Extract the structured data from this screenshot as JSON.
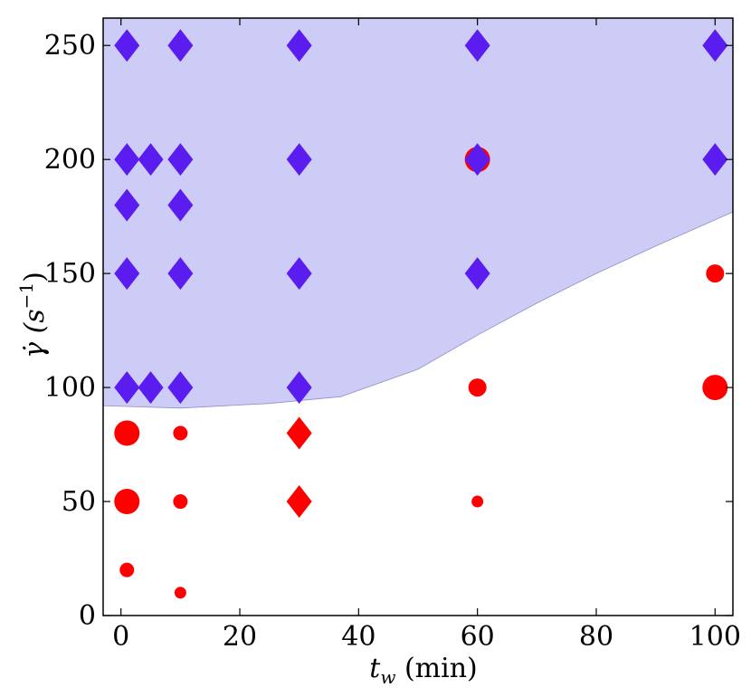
{
  "chart_data": {
    "type": "scatter",
    "title": "",
    "xlabel": "t_w (min)",
    "xlabel_main": "t",
    "xlabel_sub": "w",
    "xlabel_units": " (min)",
    "ylabel": "γ̇ (s⁻¹)",
    "ylabel_main": "γ̇ (s",
    "ylabel_sup": "−1",
    "ylabel_close": ")",
    "xlim": [
      -3,
      103
    ],
    "ylim": [
      0,
      262
    ],
    "xticks": [
      0,
      20,
      40,
      60,
      80,
      100
    ],
    "yticks": [
      0,
      50,
      100,
      150,
      200,
      250
    ],
    "grid": false,
    "region": {
      "color": "#ccccf6",
      "boundary": [
        [
          -3,
          92
        ],
        [
          10,
          91
        ],
        [
          25,
          93
        ],
        [
          37,
          96
        ],
        [
          50,
          108
        ],
        [
          60,
          123
        ],
        [
          70,
          137
        ],
        [
          80,
          150
        ],
        [
          90,
          162
        ],
        [
          103,
          177
        ]
      ],
      "top": 262
    },
    "series": [
      {
        "marker": "diamond",
        "color": "#5b1cf0",
        "points": [
          [
            1,
            250
          ],
          [
            10,
            250
          ],
          [
            30,
            250
          ],
          [
            60,
            250
          ],
          [
            100,
            250
          ],
          [
            1,
            200
          ],
          [
            5,
            200
          ],
          [
            10,
            200
          ],
          [
            30,
            200
          ],
          [
            100,
            200
          ],
          [
            1,
            180
          ],
          [
            10,
            180
          ],
          [
            1,
            150
          ],
          [
            10,
            150
          ],
          [
            30,
            150
          ],
          [
            60,
            150
          ],
          [
            1,
            100
          ],
          [
            5,
            100
          ],
          [
            10,
            100
          ],
          [
            30,
            100
          ]
        ]
      },
      {
        "marker": "circle",
        "color": "#ff0000",
        "points": [
          [
            60,
            200,
            "large"
          ],
          [
            100,
            150,
            "medium"
          ],
          [
            60,
            100,
            "medium"
          ],
          [
            100,
            100,
            "large"
          ],
          [
            1,
            80,
            "large"
          ],
          [
            10,
            80,
            "small"
          ],
          [
            1,
            50,
            "large"
          ],
          [
            10,
            50,
            "small"
          ],
          [
            60,
            50,
            "tiny"
          ],
          [
            1,
            20,
            "small"
          ],
          [
            10,
            10,
            "tiny"
          ]
        ]
      },
      {
        "marker": "diamond",
        "color": "#ff0000",
        "points": [
          [
            30,
            80
          ],
          [
            30,
            50
          ]
        ]
      },
      {
        "marker": "diamond",
        "color": "#5b1cf0",
        "points": [
          [
            60,
            200
          ]
        ]
      }
    ]
  }
}
